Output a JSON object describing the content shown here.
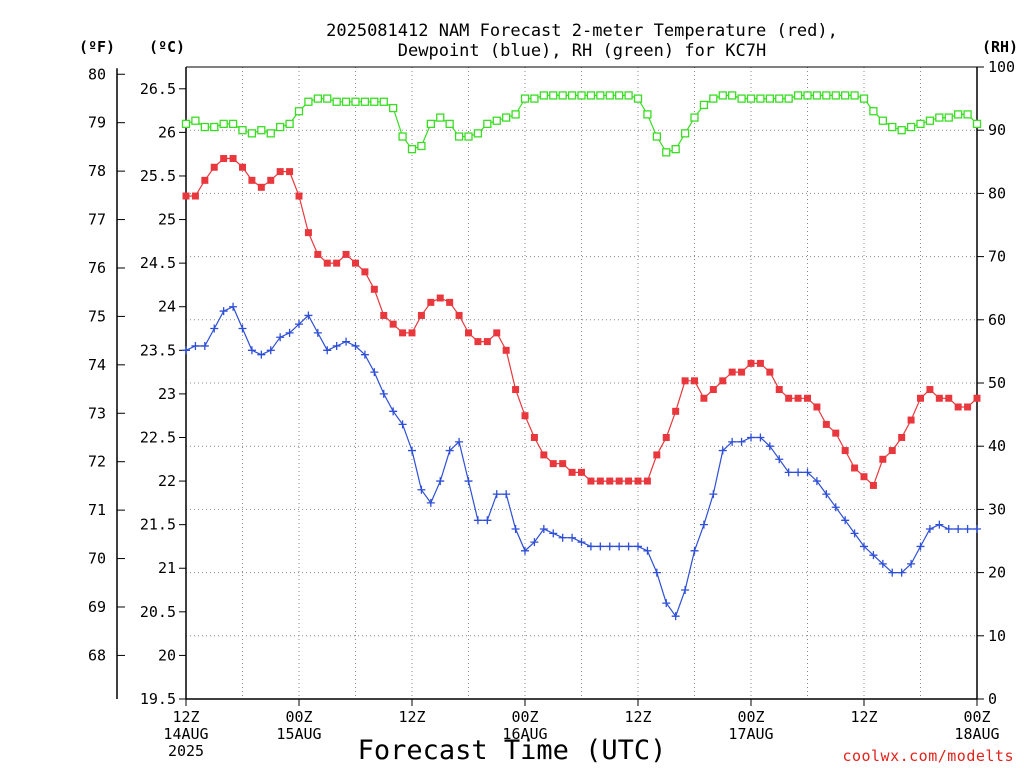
{
  "header": {
    "title_line1": "2025081412 NAM Forecast 2-meter Temperature (red),",
    "title_line2": "Dewpoint (blue), RH (green) for KC7H"
  },
  "credit": "coolwx.com/modelts",
  "chart_data": {
    "type": "line",
    "title": "2025081412 NAM Forecast 2-meter Temperature (red), Dewpoint (blue), RH (green) for KC7H",
    "xlabel": "Forecast Time (UTC)",
    "x_tick_labels": [
      {
        "hour": 0,
        "lines": [
          "12Z",
          "14AUG",
          "2025"
        ]
      },
      {
        "hour": 12,
        "lines": [
          "00Z",
          "15AUG"
        ]
      },
      {
        "hour": 24,
        "lines": [
          "12Z"
        ]
      },
      {
        "hour": 36,
        "lines": [
          "00Z",
          "16AUG"
        ]
      },
      {
        "hour": 48,
        "lines": [
          "12Z"
        ]
      },
      {
        "hour": 60,
        "lines": [
          "00Z",
          "17AUG"
        ]
      },
      {
        "hour": 72,
        "lines": [
          "12Z"
        ]
      },
      {
        "hour": 84,
        "lines": [
          "00Z",
          "18AUG"
        ]
      }
    ],
    "x_range": [
      0,
      84
    ],
    "axes": {
      "fahrenheit": {
        "label": "(ºF)",
        "ticks": [
          68,
          69,
          70,
          71,
          72,
          73,
          74,
          75,
          76,
          77,
          78,
          79,
          80
        ]
      },
      "celsius": {
        "label": "(ºC)",
        "range": [
          19.5,
          26.75
        ],
        "ticks": [
          "19.5",
          "20",
          "20.5",
          "21",
          "21.5",
          "22",
          "22.5",
          "23",
          "23.5",
          "24",
          "24.5",
          "25",
          "25.5",
          "26",
          "26.5"
        ]
      },
      "rh": {
        "label": "(RH)",
        "range": [
          0,
          100
        ],
        "ticks": [
          0,
          10,
          20,
          30,
          40,
          50,
          60,
          70,
          80,
          90,
          100
        ]
      }
    },
    "grid": true,
    "series": [
      {
        "name": "Temperature",
        "unit": "°C",
        "color": "#e8383d",
        "marker": "filled-square",
        "values": [
          25.27,
          25.27,
          25.45,
          25.6,
          25.7,
          25.7,
          25.6,
          25.45,
          25.37,
          25.45,
          25.55,
          25.55,
          25.27,
          24.85,
          24.6,
          24.5,
          24.5,
          24.6,
          24.5,
          24.4,
          24.2,
          23.9,
          23.8,
          23.7,
          23.7,
          23.9,
          24.05,
          24.1,
          24.05,
          23.9,
          23.7,
          23.6,
          23.6,
          23.7,
          23.5,
          23.05,
          22.75,
          22.5,
          22.3,
          22.2,
          22.2,
          22.1,
          22.1,
          22.0,
          22.0,
          22.0,
          22.0,
          22.0,
          22.0,
          22.0,
          22.3,
          22.5,
          22.8,
          23.15,
          23.15,
          22.95,
          23.05,
          23.15,
          23.25,
          23.25,
          23.35,
          23.35,
          23.25,
          23.05,
          22.95,
          22.95,
          22.95,
          22.85,
          22.65,
          22.55,
          22.35,
          22.15,
          22.05,
          21.95,
          22.25,
          22.35,
          22.5,
          22.7,
          22.95,
          23.05,
          22.95,
          22.95,
          22.85,
          22.85,
          22.95
        ]
      },
      {
        "name": "Dewpoint",
        "unit": "°C",
        "color": "#2e4fd6",
        "marker": "plus",
        "values": [
          23.5,
          23.55,
          23.55,
          23.75,
          23.95,
          24.0,
          23.75,
          23.5,
          23.45,
          23.5,
          23.65,
          23.7,
          23.8,
          23.9,
          23.7,
          23.5,
          23.55,
          23.6,
          23.55,
          23.45,
          23.25,
          23.0,
          22.8,
          22.65,
          22.35,
          21.9,
          21.75,
          22.0,
          22.35,
          22.45,
          22.0,
          21.55,
          21.55,
          21.85,
          21.85,
          21.45,
          21.2,
          21.3,
          21.45,
          21.4,
          21.35,
          21.35,
          21.3,
          21.25,
          21.25,
          21.25,
          21.25,
          21.25,
          21.25,
          21.2,
          20.95,
          20.6,
          20.45,
          20.75,
          21.2,
          21.5,
          21.85,
          22.35,
          22.45,
          22.45,
          22.5,
          22.5,
          22.4,
          22.25,
          22.1,
          22.1,
          22.1,
          22.0,
          21.85,
          21.7,
          21.55,
          21.4,
          21.25,
          21.15,
          21.05,
          20.95,
          20.95,
          21.05,
          21.25,
          21.45,
          21.5,
          21.45,
          21.45,
          21.45,
          21.45
        ]
      },
      {
        "name": "RH",
        "unit": "%",
        "color": "#39dd22",
        "marker": "open-square",
        "values": [
          91,
          91.5,
          90.5,
          90.5,
          91,
          91,
          90,
          89.5,
          90,
          89.5,
          90.5,
          91,
          93,
          94.5,
          95,
          95,
          94.5,
          94.5,
          94.5,
          94.5,
          94.5,
          94.5,
          93.5,
          89,
          87,
          87.5,
          91,
          92,
          91,
          89,
          89,
          89.5,
          91,
          91.5,
          92,
          92.5,
          95,
          95,
          95.5,
          95.5,
          95.5,
          95.5,
          95.5,
          95.5,
          95.5,
          95.5,
          95.5,
          95.5,
          95,
          92.5,
          89,
          86.5,
          87,
          89.5,
          92,
          94,
          95,
          95.5,
          95.5,
          95,
          95,
          95,
          95,
          95,
          95,
          95.5,
          95.5,
          95.5,
          95.5,
          95.5,
          95.5,
          95.5,
          95,
          93,
          91.5,
          90.5,
          90,
          90.5,
          91,
          91.5,
          92,
          92,
          92.5,
          92.5,
          91
        ]
      }
    ]
  }
}
